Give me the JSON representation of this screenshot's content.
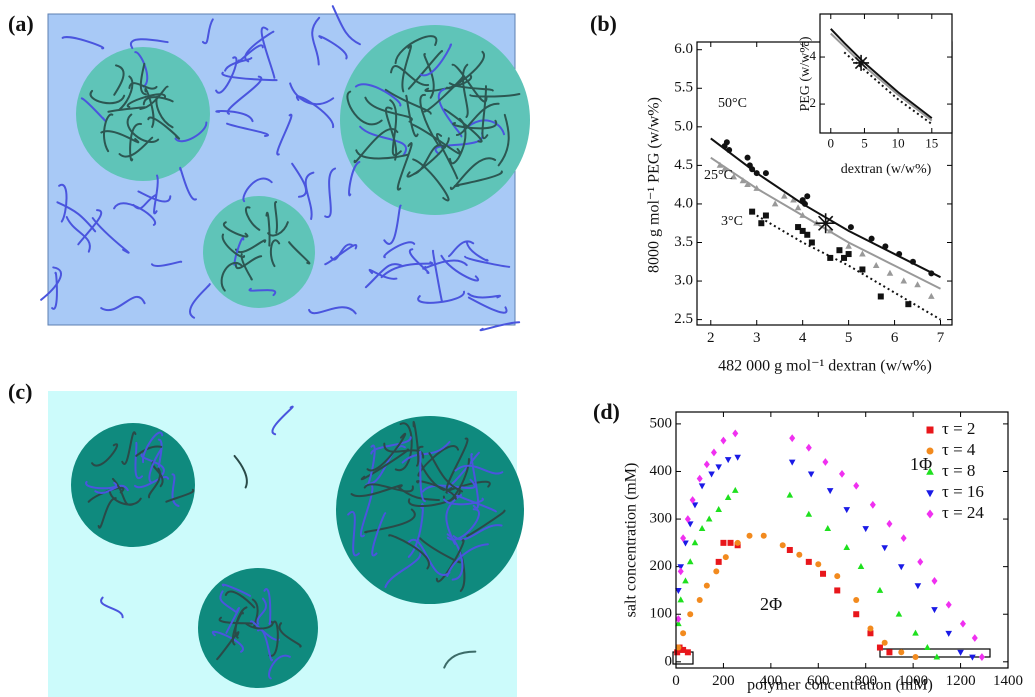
{
  "illustrations": [
    {
      "label": "(a)"
    },
    {
      "label": "(c)"
    }
  ],
  "chart_data": [
    {
      "type": "scatter",
      "panel": "(b)",
      "xlabel": "482 000 g mol⁻¹ dextran (w/w%)",
      "ylabel": "8000 g mol⁻¹ PEG (w/w%)",
      "xlim": [
        1.7,
        7.25
      ],
      "xticks": [
        2,
        3,
        4,
        5,
        6,
        7
      ],
      "ylim": [
        2.43,
        6.1
      ],
      "yticks": [
        {
          "value": 2.5,
          "label": "2.5"
        },
        {
          "value": 3,
          "label": "3.0"
        },
        {
          "value": 3.5,
          "label": "3.5"
        },
        {
          "value": 4,
          "label": "4.0"
        },
        {
          "value": 4.5,
          "label": "4.5"
        },
        {
          "value": 5,
          "label": "5.0"
        },
        {
          "value": 5.5,
          "label": "5.5"
        },
        {
          "value": 6,
          "label": "6.0"
        }
      ],
      "series": [
        {
          "name": "50°C",
          "color": "#111111",
          "marker": "circle",
          "x": [
            2.3,
            2.35,
            2.4,
            2.8,
            2.85,
            2.9,
            3.0,
            3.2,
            4.0,
            4.05,
            4.1,
            5.05,
            5.5,
            5.8,
            6.1,
            6.4,
            6.8
          ],
          "values": [
            4.75,
            4.8,
            4.7,
            4.6,
            4.5,
            4.45,
            4.4,
            4.4,
            4.05,
            4.0,
            4.1,
            3.7,
            3.55,
            3.45,
            3.35,
            3.25,
            3.1
          ]
        },
        {
          "name": "25°C",
          "color": "#999999",
          "marker": "triangle",
          "x": [
            2.2,
            2.3,
            2.5,
            2.7,
            2.8,
            3.0,
            3.4,
            3.6,
            3.8,
            3.9,
            4.0,
            4.3,
            4.6,
            5.0,
            5.3,
            5.6,
            5.9,
            6.2,
            6.5,
            6.8
          ],
          "values": [
            4.5,
            4.45,
            4.35,
            4.3,
            4.25,
            4.2,
            4.0,
            4.1,
            4.05,
            3.95,
            3.85,
            3.75,
            3.65,
            3.45,
            3.35,
            3.2,
            3.1,
            3.0,
            2.95,
            2.8
          ]
        },
        {
          "name": "3°C",
          "color": "#111111",
          "marker": "square",
          "x": [
            2.9,
            3.1,
            3.2,
            3.9,
            4.0,
            4.1,
            4.2,
            4.6,
            4.8,
            4.9,
            5.0,
            5.3,
            5.7,
            6.3
          ],
          "values": [
            3.9,
            3.75,
            3.85,
            3.7,
            3.65,
            3.6,
            3.5,
            3.3,
            3.4,
            3.3,
            3.35,
            3.15,
            2.8,
            2.7
          ]
        },
        {
          "color": "#111111",
          "line": "solid",
          "x": [
            2,
            3,
            4,
            5,
            6,
            7
          ],
          "values": [
            4.85,
            4.4,
            4.0,
            3.65,
            3.35,
            3.05
          ]
        },
        {
          "color": "#999999",
          "line": "solid",
          "x": [
            2,
            3,
            4,
            5,
            6,
            7
          ],
          "values": [
            4.6,
            4.2,
            3.85,
            3.5,
            3.2,
            2.9
          ]
        },
        {
          "color": "#111111",
          "line": "dotted",
          "x": [
            3,
            4,
            5,
            6,
            7
          ],
          "values": [
            3.85,
            3.5,
            3.2,
            2.85,
            2.5
          ]
        },
        {
          "color": "#111111",
          "marker": "star",
          "x": [
            4.5
          ],
          "values": [
            3.75
          ]
        }
      ]
    },
    {
      "type": "scatter",
      "xlabel": "dextran (w/w%)",
      "ylabel": "PEG (w/w%)",
      "xlim": [
        -1.6,
        18
      ],
      "xticks": [
        0,
        5,
        10,
        15
      ],
      "ylim": [
        0.77,
        5.83
      ],
      "yticks": [
        2,
        4
      ],
      "series": [
        {
          "color": "#111111",
          "line": "solid",
          "x": [
            0,
            2,
            5,
            10,
            15
          ],
          "values": [
            5.2,
            4.6,
            3.75,
            2.5,
            1.4
          ]
        },
        {
          "color": "#999999",
          "line": "solid",
          "x": [
            0,
            2,
            5,
            10,
            15
          ],
          "values": [
            5.0,
            4.45,
            3.6,
            2.4,
            1.3
          ]
        },
        {
          "color": "#111111",
          "line": "dotted",
          "x": [
            2,
            5,
            10,
            15
          ],
          "values": [
            4.2,
            3.45,
            2.2,
            1.15
          ]
        },
        {
          "color": "#111111",
          "marker": "star",
          "x": [
            4.5
          ],
          "values": [
            3.75
          ]
        }
      ]
    },
    {
      "type": "scatter",
      "panel": "(d)",
      "xlabel": "polymer concentration (mM)",
      "ylabel": "salt concentration (mM)",
      "xlim": [
        0,
        1400
      ],
      "xticks": [
        0,
        200,
        400,
        600,
        800,
        1000,
        1200,
        1400
      ],
      "ylim": [
        -13,
        525
      ],
      "yticks": [
        0,
        100,
        200,
        300,
        400,
        500
      ],
      "legend": "upper right",
      "annotations": [
        "1Φ",
        "2Φ"
      ],
      "series": [
        {
          "name": "τ = 2",
          "color": "#e8161b",
          "marker": "square",
          "x": [
            5,
            15,
            30,
            50,
            180,
            200,
            230,
            260,
            480,
            560,
            620,
            680,
            760,
            820,
            860,
            900
          ],
          "values": [
            20,
            30,
            25,
            20,
            210,
            250,
            250,
            245,
            235,
            210,
            185,
            150,
            100,
            60,
            30,
            20
          ]
        },
        {
          "name": "τ = 4",
          "color": "#f28a1e",
          "marker": "circle",
          "x": [
            10,
            30,
            60,
            100,
            130,
            170,
            210,
            260,
            310,
            370,
            450,
            520,
            600,
            680,
            760,
            820,
            880,
            950,
            1010
          ],
          "values": [
            30,
            60,
            100,
            130,
            160,
            190,
            220,
            250,
            265,
            265,
            245,
            225,
            205,
            180,
            130,
            70,
            40,
            20,
            10
          ]
        },
        {
          "name": "τ = 8",
          "color": "#1ee01e",
          "marker": "triangle",
          "x": [
            10,
            20,
            40,
            60,
            80,
            110,
            140,
            180,
            220,
            250,
            480,
            560,
            640,
            720,
            780,
            860,
            940,
            1010,
            1060,
            1100
          ],
          "values": [
            80,
            130,
            170,
            210,
            250,
            280,
            300,
            320,
            345,
            360,
            350,
            310,
            280,
            240,
            200,
            150,
            100,
            60,
            30,
            10
          ]
        },
        {
          "name": "τ = 16",
          "color": "#1a1ae6",
          "marker": "triangle-down",
          "x": [
            10,
            20,
            40,
            60,
            80,
            110,
            150,
            180,
            220,
            260,
            490,
            570,
            650,
            720,
            800,
            880,
            950,
            1020,
            1090,
            1150,
            1200,
            1250
          ],
          "values": [
            150,
            200,
            250,
            290,
            330,
            370,
            395,
            410,
            425,
            430,
            420,
            395,
            360,
            320,
            280,
            240,
            200,
            160,
            110,
            60,
            20,
            10
          ]
        },
        {
          "name": "τ = 24",
          "color": "#f030f0",
          "marker": "diamond",
          "x": [
            10,
            20,
            30,
            50,
            70,
            100,
            130,
            160,
            200,
            250,
            490,
            560,
            630,
            700,
            760,
            830,
            900,
            960,
            1030,
            1090,
            1150,
            1210,
            1260,
            1290
          ],
          "values": [
            90,
            190,
            260,
            300,
            340,
            385,
            415,
            440,
            465,
            480,
            470,
            450,
            420,
            395,
            370,
            330,
            290,
            260,
            210,
            170,
            120,
            80,
            50,
            10
          ]
        }
      ]
    }
  ]
}
